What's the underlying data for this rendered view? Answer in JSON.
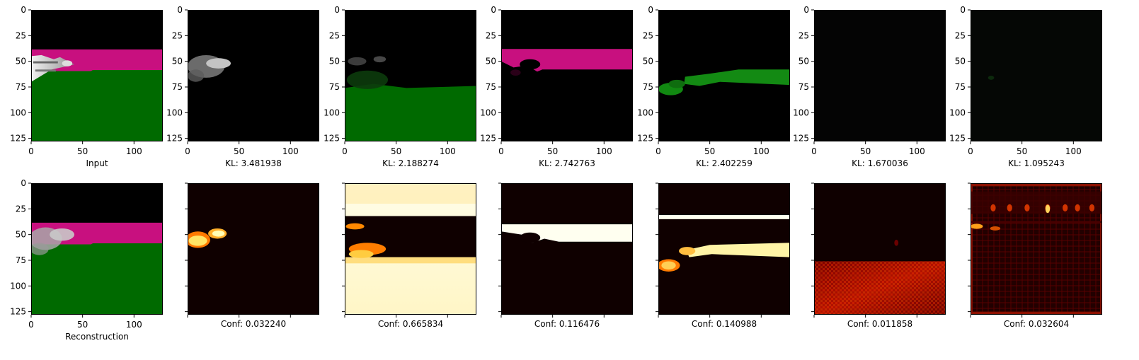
{
  "figure": {
    "rows": [
      {
        "panels": [
          {
            "kind": "input",
            "xlabel": "Input",
            "show_yticklabels": true,
            "show_xticklabels": true
          },
          {
            "kind": "mask",
            "xlabel": "KL: 3.481938",
            "show_yticklabels": true,
            "show_xticklabels": true
          },
          {
            "kind": "mask",
            "xlabel": "KL: 2.188274",
            "show_yticklabels": true,
            "show_xticklabels": true
          },
          {
            "kind": "mask",
            "xlabel": "KL: 2.742763",
            "show_yticklabels": true,
            "show_xticklabels": true
          },
          {
            "kind": "mask",
            "xlabel": "KL: 2.402259",
            "show_yticklabels": true,
            "show_xticklabels": true
          },
          {
            "kind": "mask",
            "xlabel": "KL: 1.670036",
            "show_yticklabels": true,
            "show_xticklabels": true
          },
          {
            "kind": "mask",
            "xlabel": "KL: 1.095243",
            "show_yticklabels": true,
            "show_xticklabels": true
          }
        ]
      },
      {
        "panels": [
          {
            "kind": "reconstruction",
            "xlabel": "Reconstruction",
            "show_yticklabels": true,
            "show_xticklabels": true
          },
          {
            "kind": "heatmap",
            "xlabel": "Conf: 0.032240",
            "show_yticklabels": false,
            "show_xticklabels": false
          },
          {
            "kind": "heatmap",
            "xlabel": "Conf: 0.665834",
            "show_yticklabels": false,
            "show_xticklabels": false
          },
          {
            "kind": "heatmap",
            "xlabel": "Conf: 0.116476",
            "show_yticklabels": false,
            "show_xticklabels": false
          },
          {
            "kind": "heatmap",
            "xlabel": "Conf: 0.140988",
            "show_yticklabels": false,
            "show_xticklabels": false
          },
          {
            "kind": "heatmap",
            "xlabel": "Conf: 0.011858",
            "show_yticklabels": false,
            "show_xticklabels": false
          },
          {
            "kind": "heatmap",
            "xlabel": "Conf: 0.032604",
            "show_yticklabels": false,
            "show_xticklabels": false
          }
        ]
      }
    ],
    "colors": {
      "black": "#000000",
      "magenta": "#c8107f",
      "green": "#006a00",
      "green_bright": "#1f8a1f",
      "heat_dark": "#0f0000",
      "heat_red": "#b40000",
      "heat_yellow": "#ffe27a",
      "heat_white": "#fffff0",
      "silver": "#c8c8c8"
    }
  },
  "chart_data": {
    "type": "heatmap",
    "image_size": [
      128,
      128
    ],
    "xlim": [
      0,
      128
    ],
    "ylim": [
      128,
      0
    ],
    "xticks": [
      0,
      50,
      100
    ],
    "yticks": [
      0,
      25,
      50,
      75,
      100,
      125
    ],
    "xtick_labels": [
      "0",
      "50",
      "100"
    ],
    "ytick_labels": [
      "0",
      "25",
      "50",
      "75",
      "100",
      "125"
    ],
    "kl_values": [
      3.481938,
      2.188274,
      2.742763,
      2.402259,
      1.670036,
      1.095243
    ],
    "conf_values": [
      0.03224,
      0.665834,
      0.116476,
      0.140988,
      0.011858,
      0.032604
    ],
    "colormap": "hot"
  }
}
